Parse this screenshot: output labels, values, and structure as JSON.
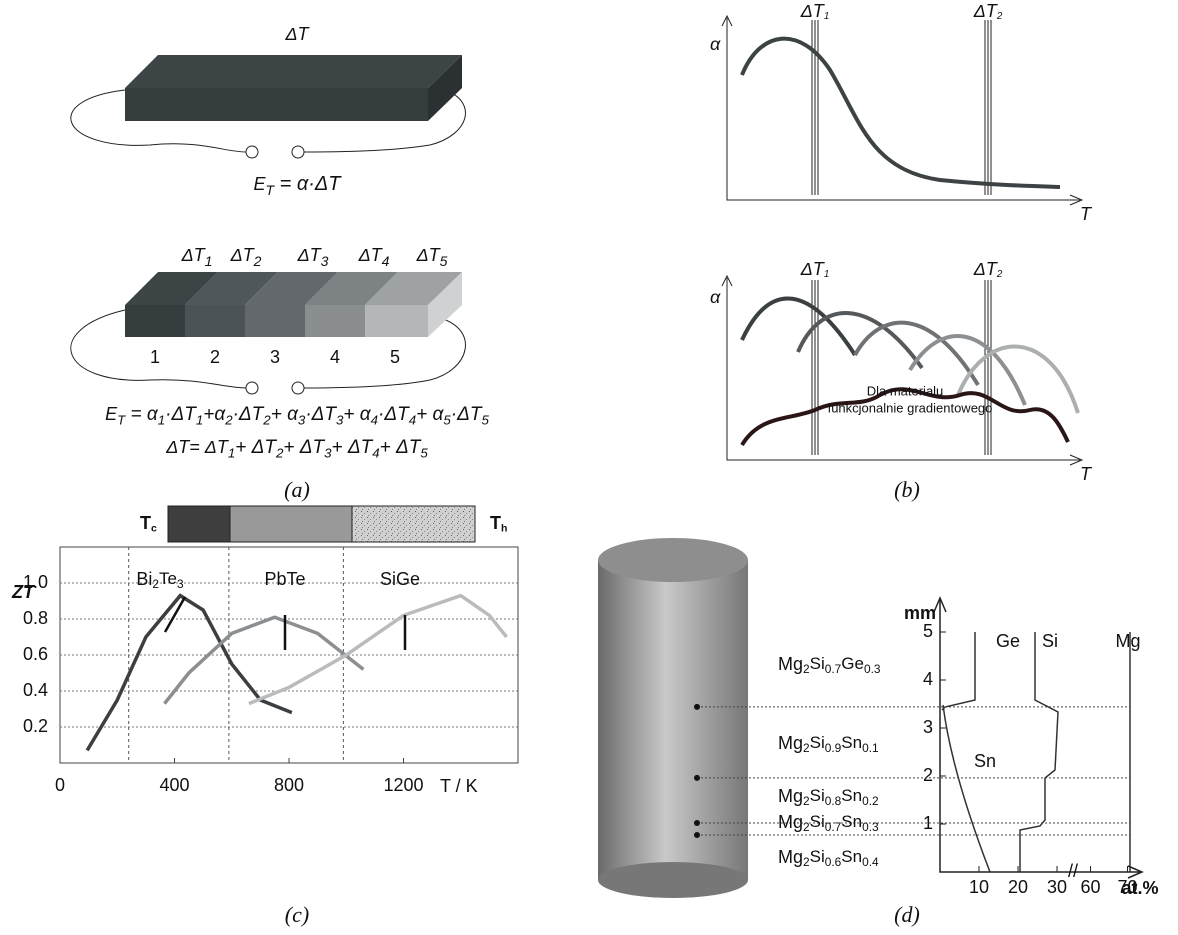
{
  "panel_a": {
    "title": "ΔT",
    "formula_single": [
      "E",
      "T",
      " = α·ΔT"
    ],
    "segment_labels": [
      [
        "ΔT",
        "1"
      ],
      [
        "ΔT",
        "2"
      ],
      [
        "ΔT",
        "3"
      ],
      [
        "ΔT",
        "4"
      ],
      [
        "ΔT",
        "5"
      ]
    ],
    "segment_numbers": [
      "1",
      "2",
      "3",
      "4",
      "5"
    ],
    "formula_sum": [
      "E",
      "T",
      " = α",
      "1",
      "·ΔT",
      "1",
      "+α",
      "2",
      "·ΔT",
      "2",
      "+ α",
      "3",
      "·ΔT",
      "3",
      "+ α",
      "4",
      "·ΔT",
      "4",
      "+ α",
      "5",
      "·ΔT",
      "5"
    ],
    "formula_total": [
      "ΔT= ΔT",
      "1",
      "+ ΔT",
      "2",
      "+ ΔT",
      "3",
      "+ ΔT",
      "4",
      "+ ΔT",
      "5"
    ],
    "caption": "(a)"
  },
  "panel_b": {
    "y_label": "α",
    "x_label": "T",
    "markers": [
      [
        "ΔT",
        "1"
      ],
      [
        "ΔT",
        "2"
      ]
    ],
    "annotation": [
      "Dla materialu",
      "funkcjonalnie gradientowego"
    ],
    "caption": "(b)"
  },
  "chart_data": {
    "type": "line",
    "y_label": "ZT",
    "x_label": "T / K",
    "xlim": [
      0,
      1600
    ],
    "ylim": [
      0,
      1.2
    ],
    "xticks": [
      0,
      400,
      800,
      1200
    ],
    "yticks": [
      0.2,
      0.4,
      0.6,
      0.8,
      {
        "value": 1,
        "label": "1.0"
      }
    ],
    "grid": true,
    "boundaries": [
      240,
      590,
      990
    ],
    "cold_label": [
      "T",
      "c"
    ],
    "hot_label": [
      "T",
      "h"
    ],
    "series": [
      {
        "name": [
          "Bi",
          "2",
          "Te",
          "3"
        ],
        "color": "#3c3f41",
        "x": [
          95,
          200,
          300,
          420,
          500,
          600,
          700,
          810
        ],
        "values": [
          0.07,
          0.35,
          0.7,
          0.93,
          0.85,
          0.55,
          0.35,
          0.28
        ]
      },
      {
        "name": [
          "PbTe"
        ],
        "color": "#8c8f91",
        "x": [
          365,
          450,
          600,
          750,
          900,
          1060
        ],
        "values": [
          0.33,
          0.5,
          0.72,
          0.81,
          0.72,
          0.52
        ]
      },
      {
        "name": [
          "SiGe"
        ],
        "color": "#b9bbbd",
        "x": [
          660,
          800,
          1000,
          1200,
          1400,
          1500,
          1560
        ],
        "values": [
          0.33,
          0.42,
          0.6,
          0.82,
          0.93,
          0.82,
          0.7
        ]
      }
    ],
    "caption": "(c)"
  },
  "panel_d": {
    "y_unit": "mm",
    "x_unit": "at.%",
    "yticks": [
      1,
      2,
      3,
      4,
      5
    ],
    "xticks": [
      10,
      20,
      30,
      60,
      70
    ],
    "axis_break": "//",
    "elements": [
      "Ge",
      "Si",
      "Mg",
      "Sn"
    ],
    "layers": [
      [
        "Mg",
        "2",
        "Si",
        "0.7",
        "Ge",
        "0.3"
      ],
      [
        "Mg",
        "2",
        "Si",
        "0.9",
        "Sn",
        "0.1"
      ],
      [
        "Mg",
        "2",
        "Si",
        "0.8",
        "Sn",
        "0.2"
      ],
      [
        "Mg",
        "2",
        "Si",
        "0.7",
        "Sn",
        "0.3"
      ],
      [
        "Mg",
        "2",
        "Si",
        "0.6",
        "Sn",
        "0.4"
      ]
    ],
    "interfaces": [
      3.44,
      1.96,
      1.02,
      0.77
    ],
    "caption": "(d)"
  }
}
